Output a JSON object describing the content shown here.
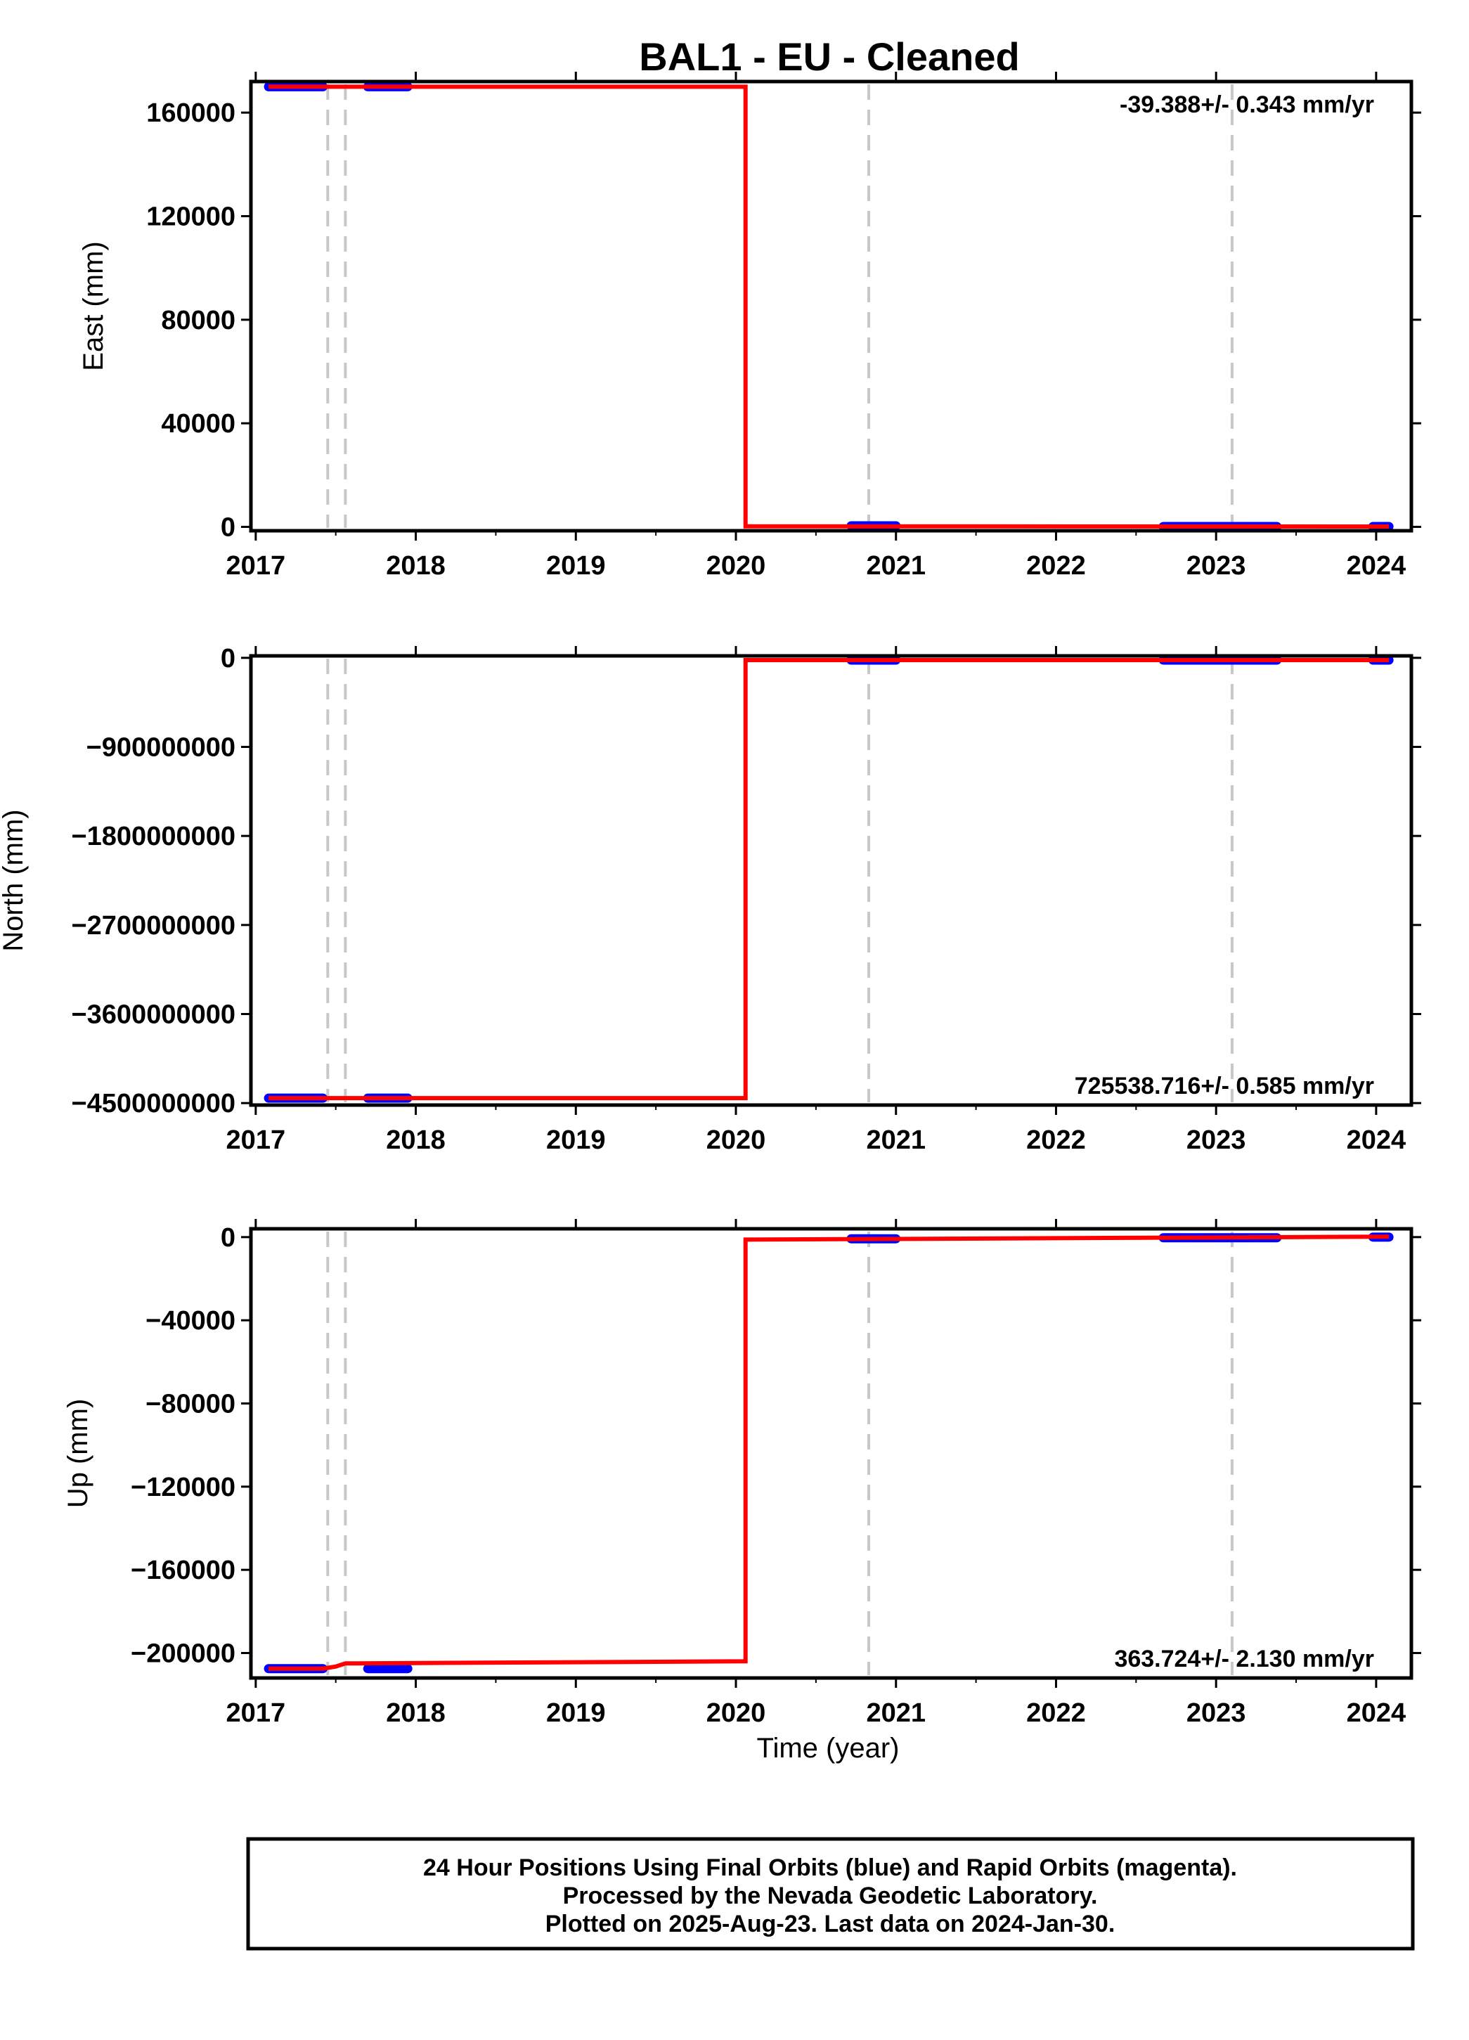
{
  "title": "BAL1  - EU - Cleaned",
  "xlabel": "Time (year)",
  "footer": [
    "24 Hour Positions Using Final Orbits (blue) and Rapid Orbits (magenta).",
    "Processed by the Nevada Geodetic Laboratory.",
    "Plotted on 2025-Aug-23. Last data on 2024-Jan-30."
  ],
  "colors": {
    "model": "#ff0000",
    "final_orbits": "#0000ff",
    "rapid_orbits": "#ff00ff",
    "event_lines": "#c8c8c8",
    "frame": "#000000"
  },
  "chart_data": [
    {
      "type": "line",
      "panel": "east",
      "ylabel": "East (mm)",
      "rate_text": "-39.388+/- 0.343 mm/yr",
      "rate_position": "top-right",
      "xlim": [
        2016.97,
        2024.22
      ],
      "ylim": [
        -1500,
        172000
      ],
      "x_ticks": [
        2017,
        2018,
        2019,
        2020,
        2021,
        2022,
        2023,
        2024
      ],
      "x_tick_labels": [
        "2017",
        "2018",
        "2019",
        "2020",
        "2021",
        "2022",
        "2023",
        "2024"
      ],
      "y_ticks": [
        0,
        40000,
        80000,
        120000,
        160000
      ],
      "y_tick_labels": [
        "0",
        "40000",
        "80000",
        "120000",
        "160000"
      ],
      "event_lines_x": [
        2017.45,
        2017.56,
        2020.83,
        2023.1
      ],
      "data_spans": [
        {
          "x": [
            2017.08,
            2017.42
          ],
          "y": 170000
        },
        {
          "x": [
            2017.7,
            2017.95
          ],
          "y": 170000
        },
        {
          "x": [
            2020.72,
            2021.0
          ],
          "y": 400
        },
        {
          "x": [
            2022.67,
            2023.38
          ],
          "y": 0
        },
        {
          "x": [
            2023.98,
            2024.08
          ],
          "y": 0
        }
      ],
      "model_line": {
        "x": [
          2017.08,
          2020.06,
          2020.06,
          2024.08
        ],
        "y": [
          170000,
          170000,
          200,
          -100
        ]
      }
    },
    {
      "type": "line",
      "panel": "north",
      "ylabel": "North (mm)",
      "rate_text": "725538.716+/- 0.585 mm/yr",
      "rate_position": "bottom-right",
      "xlim": [
        2016.97,
        2024.22
      ],
      "ylim": [
        -4520000000,
        20000000
      ],
      "x_ticks": [
        2017,
        2018,
        2019,
        2020,
        2021,
        2022,
        2023,
        2024
      ],
      "x_tick_labels": [
        "2017",
        "2018",
        "2019",
        "2020",
        "2021",
        "2022",
        "2023",
        "2024"
      ],
      "y_ticks": [
        0,
        -900000000,
        -1800000000,
        -2700000000,
        -3600000000,
        -4500000000
      ],
      "y_tick_labels": [
        "0",
        "−900000000",
        "−1800000000",
        "−2700000000",
        "−3600000000",
        "−4500000000"
      ],
      "event_lines_x": [
        2017.45,
        2017.56,
        2020.83,
        2023.1
      ],
      "data_spans": [
        {
          "x": [
            2017.08,
            2017.42
          ],
          "y": -4450000000
        },
        {
          "x": [
            2017.7,
            2017.95
          ],
          "y": -4450000000
        },
        {
          "x": [
            2020.72,
            2021.0
          ],
          "y": 0
        },
        {
          "x": [
            2022.67,
            2023.38
          ],
          "y": 0
        },
        {
          "x": [
            2023.98,
            2024.08
          ],
          "y": 0
        }
      ],
      "model_line": {
        "x": [
          2017.08,
          2020.06,
          2020.06,
          2024.08
        ],
        "y": [
          -4450000000,
          -4450000000,
          0,
          0
        ]
      }
    },
    {
      "type": "line",
      "panel": "up",
      "ylabel": "Up (mm)",
      "rate_text": "363.724+/- 2.130 mm/yr",
      "rate_position": "bottom-right",
      "xlim": [
        2016.97,
        2024.22
      ],
      "ylim": [
        -212000,
        4000
      ],
      "x_ticks": [
        2017,
        2018,
        2019,
        2020,
        2021,
        2022,
        2023,
        2024
      ],
      "x_tick_labels": [
        "2017",
        "2018",
        "2019",
        "2020",
        "2021",
        "2022",
        "2023",
        "2024"
      ],
      "y_ticks": [
        0,
        -40000,
        -80000,
        -120000,
        -160000,
        -200000
      ],
      "y_tick_labels": [
        "0",
        "−40000",
        "−80000",
        "−120000",
        "−160000",
        "−200000"
      ],
      "event_lines_x": [
        2017.45,
        2017.56,
        2020.83,
        2023.1
      ],
      "data_spans": [
        {
          "x": [
            2017.08,
            2017.42
          ],
          "y": -207500
        },
        {
          "x": [
            2017.7,
            2017.95
          ],
          "y": -207500
        },
        {
          "x": [
            2020.72,
            2021.0
          ],
          "y": -800
        },
        {
          "x": [
            2022.67,
            2023.38
          ],
          "y": -300
        },
        {
          "x": [
            2023.98,
            2024.08
          ],
          "y": 0
        }
      ],
      "model_line": {
        "x": [
          2017.08,
          2017.42,
          2017.5,
          2017.56,
          2020.06,
          2020.06,
          2024.08
        ],
        "y": [
          -207500,
          -207500,
          -206500,
          -205000,
          -204000,
          -1200,
          200
        ]
      }
    }
  ]
}
